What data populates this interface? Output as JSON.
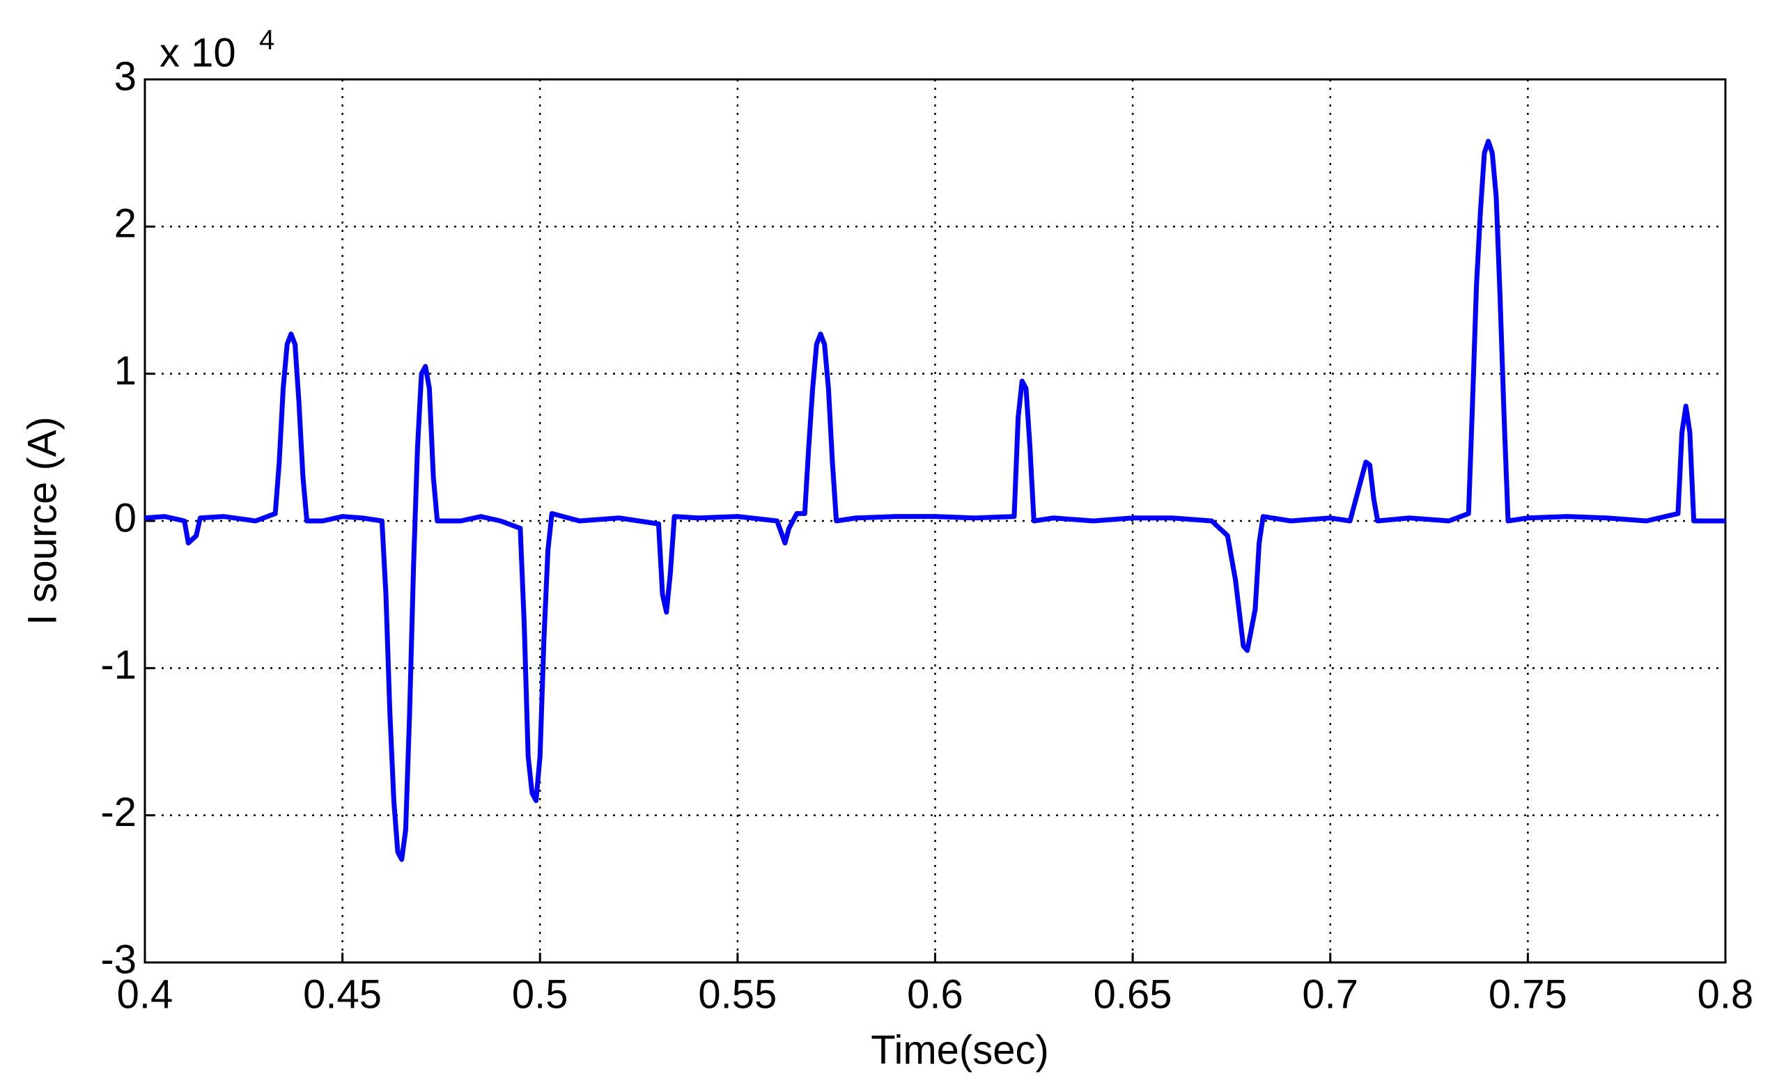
{
  "chart_data": {
    "type": "line",
    "xlabel": "Time(sec)",
    "ylabel": "I source (A)",
    "y_multiplier": {
      "base": "x 10",
      "exponent": "4"
    },
    "xlim": [
      0.4,
      0.8
    ],
    "xticks": [
      0.4,
      0.45,
      0.5,
      0.55,
      0.6,
      0.65,
      0.7,
      0.75,
      0.8
    ],
    "ylim": [
      -3,
      3
    ],
    "yticks": [
      -3,
      -2,
      -1,
      0,
      1,
      2,
      3
    ],
    "grid": true,
    "x": [
      0.4,
      0.405,
      0.41,
      0.411,
      0.413,
      0.414,
      0.42,
      0.428,
      0.433,
      0.434,
      0.435,
      0.436,
      0.437,
      0.438,
      0.439,
      0.44,
      0.441,
      0.445,
      0.45,
      0.455,
      0.46,
      0.461,
      0.462,
      0.463,
      0.464,
      0.465,
      0.466,
      0.467,
      0.468,
      0.469,
      0.47,
      0.471,
      0.472,
      0.473,
      0.474,
      0.48,
      0.485,
      0.49,
      0.495,
      0.496,
      0.497,
      0.498,
      0.499,
      0.5,
      0.501,
      0.502,
      0.503,
      0.51,
      0.52,
      0.53,
      0.531,
      0.532,
      0.533,
      0.534,
      0.54,
      0.55,
      0.56,
      0.562,
      0.563,
      0.565,
      0.567,
      0.568,
      0.569,
      0.57,
      0.571,
      0.572,
      0.573,
      0.574,
      0.575,
      0.58,
      0.59,
      0.6,
      0.61,
      0.62,
      0.621,
      0.622,
      0.623,
      0.624,
      0.625,
      0.63,
      0.64,
      0.65,
      0.66,
      0.67,
      0.674,
      0.676,
      0.678,
      0.679,
      0.681,
      0.682,
      0.683,
      0.69,
      0.7,
      0.705,
      0.707,
      0.709,
      0.71,
      0.711,
      0.712,
      0.72,
      0.73,
      0.735,
      0.736,
      0.737,
      0.738,
      0.739,
      0.74,
      0.741,
      0.742,
      0.743,
      0.744,
      0.745,
      0.75,
      0.76,
      0.77,
      0.78,
      0.788,
      0.789,
      0.79,
      0.791,
      0.792,
      0.8
    ],
    "series": [
      {
        "color": "#0000ff",
        "values": [
          0.02,
          0.03,
          0.0,
          -0.15,
          -0.1,
          0.02,
          0.03,
          0.0,
          0.05,
          0.4,
          0.9,
          1.2,
          1.27,
          1.2,
          0.8,
          0.3,
          0.0,
          0.0,
          0.03,
          0.02,
          0.0,
          -0.5,
          -1.3,
          -1.9,
          -2.25,
          -2.3,
          -2.1,
          -1.3,
          -0.3,
          0.5,
          1.0,
          1.05,
          0.9,
          0.3,
          0.0,
          0.0,
          0.03,
          0.0,
          -0.05,
          -0.7,
          -1.6,
          -1.85,
          -1.9,
          -1.6,
          -0.8,
          -0.2,
          0.05,
          0.0,
          0.02,
          -0.02,
          -0.5,
          -0.62,
          -0.35,
          0.03,
          0.02,
          0.03,
          0.0,
          -0.15,
          -0.05,
          0.05,
          0.05,
          0.5,
          0.9,
          1.2,
          1.27,
          1.2,
          0.9,
          0.4,
          0.0,
          0.02,
          0.03,
          0.03,
          0.02,
          0.03,
          0.7,
          0.95,
          0.9,
          0.5,
          0.0,
          0.02,
          0.0,
          0.02,
          0.02,
          0.0,
          -0.1,
          -0.4,
          -0.85,
          -0.88,
          -0.6,
          -0.15,
          0.03,
          0.0,
          0.02,
          0.0,
          0.2,
          0.4,
          0.38,
          0.15,
          0.0,
          0.02,
          0.0,
          0.05,
          0.8,
          1.6,
          2.1,
          2.5,
          2.58,
          2.5,
          2.2,
          1.5,
          0.7,
          0.0,
          0.02,
          0.03,
          0.02,
          0.0,
          0.05,
          0.6,
          0.78,
          0.6,
          0.0,
          0.0
        ]
      }
    ]
  }
}
